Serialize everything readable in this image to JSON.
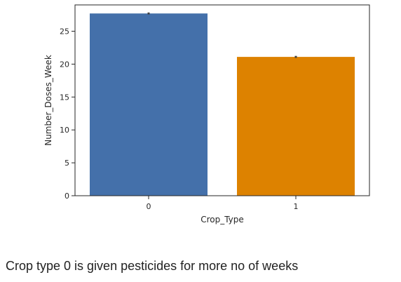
{
  "chart_data": {
    "type": "bar",
    "categories": [
      "0",
      "1"
    ],
    "values": [
      27.7,
      21.1
    ],
    "error_bars": [
      [
        27.55,
        27.85
      ],
      [
        20.95,
        21.25
      ]
    ],
    "xlabel": "Crop_Type",
    "ylabel": "Number_Doses_Week",
    "ylim": [
      0,
      29
    ],
    "yticks": [
      0,
      5,
      10,
      15,
      20,
      25
    ],
    "colors": [
      "#4470aa",
      "#dd8200"
    ],
    "grid": false,
    "legend": "none"
  },
  "caption": "Crop type 0 is given pesticides for more no of weeks"
}
